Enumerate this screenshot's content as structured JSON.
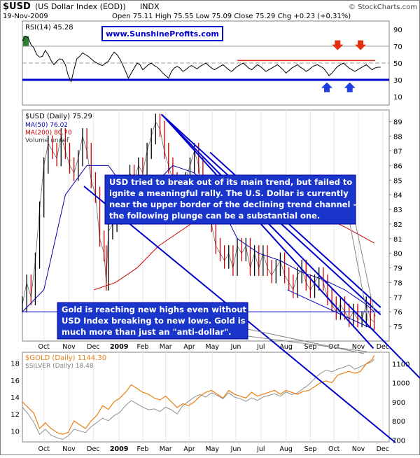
{
  "header": {
    "symbol": "$USD",
    "name": "(US Dollar Index (EOD))",
    "exchange": "INDX",
    "date": "19-Nov-2009",
    "quote": "Open 75.11  High 75.55  Low 75.09  Close 75.29  Chg +0.23 (+0.31%)",
    "quote_change_prefix": "Chg ",
    "brand": "© StockCharts.com"
  },
  "colors": {
    "frame": "#808080",
    "bg": "#ffffff",
    "price_up": "#000000",
    "price_down": "#cc0000",
    "ma50": "#0000aa",
    "ma200": "#cc0000",
    "trend": "#0000cc",
    "rsi_line": "#000000",
    "rsi_fill_over": "#2e7d32",
    "gold": "#e87f12",
    "silver": "#909090",
    "annotation_text": "#ffffff",
    "annotation_bg": "#1a35c9",
    "watermark": "#0000cc",
    "arrow_up": "#1f3ee0",
    "arrow_down": "#e03010",
    "ref_red": "#e03010"
  },
  "watermark": "www.SunshineProfits.com",
  "annotations": {
    "top": "USD tried to break out of its main trend, but failed to ignite a meaningful rally. The U.S. Dollar is currently near the upper border of the declining trend channel - the following plunge can be a substantial one.",
    "top_lines": [
      "USD tried to break out of its main trend, but failed to",
      "ignite a meaningful rally. The U.S. Dollar is currently",
      "near the upper border of the declining trend channel -",
      "the following plunge can be a substantial one."
    ],
    "bottom": "Gold is reaching new highs even without USD Index breaking to new lows. Gold is much more than just an \"anti-dollar\".",
    "bottom_lines": [
      "Gold is reaching new highs even without",
      "USD Index breaking to new lows. Gold is",
      "much more than just an \"anti-dollar\"."
    ]
  },
  "chart_data": [
    {
      "type": "line",
      "panel": "rsi",
      "title": "RSI(14) 45.28",
      "ylim": [
        0,
        100
      ],
      "yticks": [
        10,
        30,
        50,
        70,
        90
      ],
      "reference_lines": [
        30,
        50,
        70
      ],
      "x_index": [
        0,
        4,
        8,
        12,
        16,
        20,
        24,
        28,
        32,
        36,
        40,
        44,
        48,
        52,
        56,
        60,
        64,
        68,
        72,
        76,
        80,
        84,
        88,
        92,
        96,
        100,
        104,
        108,
        112,
        116,
        120,
        124,
        128,
        132,
        136,
        140,
        144,
        148,
        152,
        156,
        160,
        164,
        168,
        172,
        176,
        180,
        184,
        188,
        192,
        196,
        200,
        204,
        208,
        212,
        216,
        220,
        224,
        228,
        232,
        236,
        240,
        244,
        248,
        252,
        256,
        260,
        264,
        268,
        272,
        276,
        280,
        284,
        288,
        292,
        296,
        300,
        304,
        308,
        312,
        316,
        320,
        324,
        328,
        332,
        336,
        340,
        344,
        348,
        352,
        356,
        360,
        364,
        368,
        372,
        376,
        380,
        384,
        388,
        392,
        396,
        400,
        404,
        408,
        412,
        416,
        420,
        424,
        428,
        432,
        436,
        440,
        444,
        448,
        452,
        456,
        460,
        464,
        468,
        472,
        476,
        480,
        484,
        488,
        492,
        496,
        500
      ],
      "values": [
        76,
        82,
        80,
        72,
        68,
        60,
        57,
        58,
        65,
        60,
        53,
        48,
        52,
        55,
        54,
        48,
        35,
        28,
        42,
        55,
        58,
        62,
        60,
        58,
        55,
        52,
        50,
        48,
        47,
        50,
        52,
        58,
        63,
        60,
        55,
        48,
        40,
        32,
        38,
        44,
        50,
        48,
        42,
        45,
        48,
        50,
        47,
        45,
        42,
        38,
        35,
        32,
        40,
        44,
        46,
        44,
        40,
        42,
        45,
        47,
        45,
        43,
        46,
        48,
        50,
        47,
        44,
        42,
        44,
        46,
        48,
        45,
        42,
        40,
        43,
        46,
        48,
        50,
        47,
        44,
        42,
        45,
        48,
        46,
        43,
        40,
        42,
        44,
        46,
        48,
        45,
        42,
        38,
        41,
        44,
        46,
        48,
        45,
        43,
        40,
        42,
        45,
        47,
        48,
        46,
        44,
        40,
        35,
        38,
        42,
        46,
        48,
        50,
        47,
        44,
        42,
        40,
        42,
        44,
        46,
        48,
        45,
        42,
        44,
        45,
        45
      ],
      "arrows_down_x": [
        440,
        472
      ],
      "arrows_up_x": [
        425,
        457
      ]
    },
    {
      "type": "line",
      "panel": "price",
      "title": "$USD (Daily) 75.29",
      "legend": [
        "MA(50) 76.02",
        "MA(200) 80.70",
        "Volume undef"
      ],
      "ylim": [
        74,
        89.8
      ],
      "yticks": [
        75,
        76,
        77,
        78,
        79,
        80,
        81,
        82,
        83,
        84,
        85,
        86,
        87,
        88,
        89
      ],
      "x_labels": [
        "Oct",
        "Nov",
        "Dec",
        "2009",
        "Feb",
        "Mar",
        "Apr",
        "May",
        "Jun",
        "Jul",
        "Aug",
        "Sep",
        "Oct",
        "Nov",
        "Dec"
      ],
      "x_label_index": [
        30,
        65,
        99,
        135,
        168,
        200,
        233,
        265,
        298,
        333,
        368,
        402,
        435,
        469,
        503
      ],
      "series": [
        {
          "name": "$USD",
          "x_index": [
            0,
            6,
            12,
            18,
            24,
            30,
            36,
            42,
            48,
            54,
            60,
            66,
            72,
            78,
            84,
            90,
            96,
            102,
            108,
            114,
            117,
            120,
            126,
            132,
            138,
            144,
            150,
            156,
            162,
            168,
            174,
            180,
            186,
            192,
            198,
            204,
            210,
            216,
            222,
            228,
            234,
            240,
            246,
            252,
            258,
            264,
            270,
            276,
            282,
            288,
            294,
            300,
            306,
            312,
            318,
            324,
            330,
            336,
            342,
            348,
            354,
            360,
            366,
            372,
            378,
            384,
            390,
            396,
            402,
            408,
            414,
            420,
            426,
            432,
            438,
            444,
            450,
            456,
            462,
            468,
            474,
            480,
            486,
            491
          ],
          "values": [
            76.5,
            78.0,
            77.0,
            79.5,
            83.0,
            86.0,
            87.5,
            87.0,
            86.5,
            88.0,
            87.0,
            86.0,
            85.5,
            86.5,
            88.0,
            87.0,
            85.0,
            84.0,
            81.0,
            80.0,
            78.0,
            81.5,
            82.0,
            82.5,
            83.0,
            84.0,
            85.5,
            85.0,
            86.0,
            85.5,
            87.0,
            88.0,
            89.0,
            88.5,
            87.0,
            86.0,
            85.0,
            84.0,
            84.5,
            85.0,
            86.0,
            87.0,
            86.0,
            84.0,
            83.0,
            82.0,
            80.5,
            80.0,
            79.5,
            80.0,
            79.0,
            80.5,
            80.0,
            80.5,
            79.0,
            80.0,
            79.0,
            80.0,
            79.0,
            78.5,
            79.0,
            79.5,
            78.5,
            78.0,
            77.5,
            78.5,
            79.0,
            78.0,
            77.5,
            78.0,
            78.5,
            78.0,
            77.0,
            76.5,
            76.0,
            76.5,
            76.0,
            75.5,
            76.0,
            75.5,
            75.5,
            76.5,
            75.5,
            75.3
          ]
        },
        {
          "name": "MA(50) 76.02",
          "x_index": [
            0,
            30,
            60,
            90,
            120,
            150,
            180,
            210,
            240,
            270,
            300,
            330,
            360,
            390,
            420,
            450,
            480,
            491
          ],
          "values": [
            76.0,
            77.5,
            84.0,
            86.0,
            86.0,
            84.0,
            84.5,
            86.0,
            85.5,
            84.0,
            81.0,
            80.0,
            79.5,
            78.7,
            78.2,
            77.5,
            76.5,
            76.0
          ]
        },
        {
          "name": "MA(200) 80.70",
          "x_index": [
            100,
            130,
            160,
            190,
            220,
            250,
            280,
            300,
            320,
            340,
            360,
            390,
            420,
            450,
            480,
            491
          ],
          "values": [
            77.5,
            78.0,
            79.0,
            80.5,
            81.5,
            82.5,
            83.0,
            83.5,
            83.7,
            83.6,
            83.4,
            83.0,
            82.5,
            81.8,
            81.0,
            80.7
          ]
        }
      ],
      "trend_lines": [
        {
          "x1": 194,
          "y1": 89.5,
          "x2": 500,
          "y2": 75.8
        },
        {
          "x1": 262,
          "y1": 86.9,
          "x2": 500,
          "y2": 76.3
        },
        {
          "x1": 200,
          "y1": 89.2,
          "x2": 490,
          "y2": 73.5
        },
        {
          "x1": 370,
          "y1": 77.5,
          "x2": 490,
          "y2": 74.8
        },
        {
          "x1": 0,
          "y1": 76.0,
          "x2": 500,
          "y2": 76.0
        }
      ]
    },
    {
      "type": "line",
      "panel": "gold",
      "title": "$GOLD (Daily) 1144.30",
      "legend": [
        "$GOLD (Daily) 1144.30",
        "$SILVER (Daily) 18.48"
      ],
      "gold_ticks": [
        700,
        800,
        900,
        1000,
        1100
      ],
      "gold_ylim": [
        690,
        1160
      ],
      "silver_ticks": [
        10,
        12,
        14,
        16,
        18
      ],
      "silver_ylim": [
        8.7,
        19.3
      ],
      "x_labels": [
        "Oct",
        "Nov",
        "Dec",
        "2009",
        "Feb",
        "Mar",
        "Apr",
        "May",
        "Jun",
        "Jul",
        "Aug",
        "Sep",
        "Oct",
        "Nov",
        "Dec"
      ],
      "x_label_index": [
        30,
        65,
        99,
        135,
        168,
        200,
        233,
        265,
        298,
        333,
        368,
        402,
        435,
        469,
        503
      ],
      "series": [
        {
          "name": "$GOLD (Daily) 1144.30",
          "x_index": [
            0,
            8,
            16,
            24,
            32,
            40,
            48,
            56,
            64,
            72,
            80,
            88,
            96,
            104,
            112,
            120,
            128,
            136,
            144,
            152,
            160,
            168,
            176,
            184,
            192,
            200,
            208,
            216,
            224,
            232,
            240,
            248,
            256,
            264,
            272,
            280,
            288,
            296,
            304,
            312,
            320,
            328,
            336,
            344,
            352,
            360,
            368,
            376,
            384,
            392,
            400,
            408,
            416,
            424,
            432,
            440,
            448,
            456,
            464,
            472,
            480,
            488,
            491
          ],
          "values": [
            900,
            870,
            840,
            760,
            790,
            760,
            740,
            730,
            740,
            800,
            780,
            760,
            800,
            830,
            880,
            860,
            900,
            920,
            950,
            990,
            970,
            950,
            940,
            920,
            910,
            930,
            900,
            870,
            890,
            880,
            900,
            930,
            950,
            960,
            940,
            920,
            960,
            940,
            930,
            920,
            950,
            930,
            940,
            950,
            960,
            940,
            960,
            950,
            940,
            955,
            960,
            980,
            1000,
            1010,
            1000,
            1040,
            1050,
            1060,
            1050,
            1060,
            1100,
            1120,
            1144
          ]
        },
        {
          "name": "$SILVER (Daily) 18.48",
          "x_index": [
            0,
            8,
            16,
            24,
            32,
            40,
            48,
            56,
            64,
            72,
            80,
            88,
            96,
            104,
            112,
            120,
            128,
            136,
            144,
            152,
            160,
            168,
            176,
            184,
            192,
            200,
            208,
            216,
            224,
            232,
            240,
            248,
            256,
            264,
            272,
            280,
            288,
            296,
            304,
            312,
            320,
            328,
            336,
            344,
            352,
            360,
            368,
            376,
            384,
            392,
            400,
            408,
            416,
            424,
            432,
            440,
            448,
            456,
            464,
            472,
            480,
            488,
            491
          ],
          "values": [
            12.8,
            12.0,
            11.0,
            9.6,
            10.2,
            9.5,
            9.2,
            9.0,
            9.4,
            10.2,
            10.0,
            9.8,
            10.5,
            11.0,
            11.5,
            11.2,
            11.8,
            12.2,
            13.0,
            13.6,
            13.2,
            12.8,
            12.5,
            12.6,
            12.3,
            12.8,
            12.5,
            12.0,
            13.0,
            13.5,
            14.0,
            14.3,
            14.0,
            14.5,
            14.2,
            13.8,
            14.5,
            14.0,
            13.8,
            13.5,
            13.9,
            13.6,
            14.0,
            14.2,
            14.4,
            14.1,
            14.6,
            14.3,
            14.5,
            15.0,
            15.5,
            16.2,
            16.8,
            17.2,
            17.0,
            17.3,
            17.5,
            17.8,
            17.3,
            17.6,
            17.9,
            18.2,
            18.48
          ]
        }
      ]
    }
  ]
}
